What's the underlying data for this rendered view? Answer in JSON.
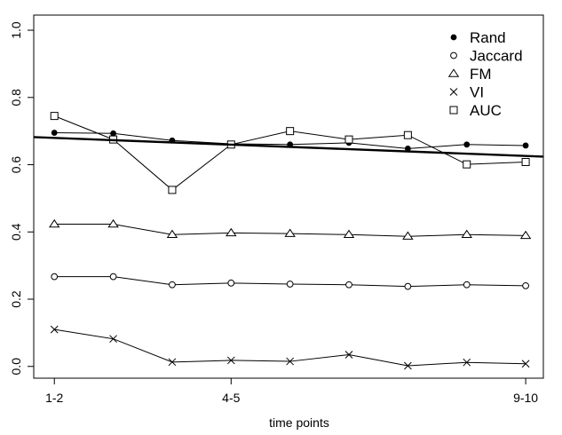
{
  "chart_data": {
    "type": "line",
    "title": "",
    "xlabel": "time points",
    "ylabel": "",
    "x": [
      1,
      2,
      3,
      4,
      5,
      6,
      7,
      8,
      9
    ],
    "xlim": [
      0.65,
      9.3
    ],
    "ylim": [
      -0.035,
      1.045
    ],
    "x_ticks": [
      {
        "x": 1,
        "label": "1-2"
      },
      {
        "x": 4,
        "label": "4-5"
      },
      {
        "x": 9,
        "label": "9-10"
      }
    ],
    "y_ticks": [
      0.0,
      0.2,
      0.4,
      0.6,
      0.8,
      1.0
    ],
    "y_tick_labels": [
      "0.0",
      "0.2",
      "0.4",
      "0.6",
      "0.8",
      "1.0"
    ],
    "grid": false,
    "legend_position": "top-right",
    "series": [
      {
        "name": "Rand",
        "marker": "filled-circle",
        "values": [
          0.695,
          0.693,
          0.672,
          0.662,
          0.66,
          0.665,
          0.648,
          0.66,
          0.657
        ]
      },
      {
        "name": "Jaccard",
        "marker": "open-circle",
        "values": [
          0.267,
          0.267,
          0.243,
          0.248,
          0.245,
          0.243,
          0.238,
          0.243,
          0.24
        ]
      },
      {
        "name": "FM",
        "marker": "open-triangle",
        "values": [
          0.423,
          0.423,
          0.392,
          0.397,
          0.395,
          0.392,
          0.387,
          0.392,
          0.389
        ]
      },
      {
        "name": "VI",
        "marker": "cross",
        "values": [
          0.11,
          0.082,
          0.013,
          0.018,
          0.015,
          0.035,
          0.002,
          0.012,
          0.008
        ]
      },
      {
        "name": "AUC",
        "marker": "open-square",
        "values": [
          0.745,
          0.675,
          0.525,
          0.66,
          0.7,
          0.675,
          0.688,
          0.601,
          0.608
        ]
      }
    ],
    "trend_line": {
      "x": [
        0.65,
        9.3
      ],
      "y": [
        0.682,
        0.624
      ]
    }
  }
}
